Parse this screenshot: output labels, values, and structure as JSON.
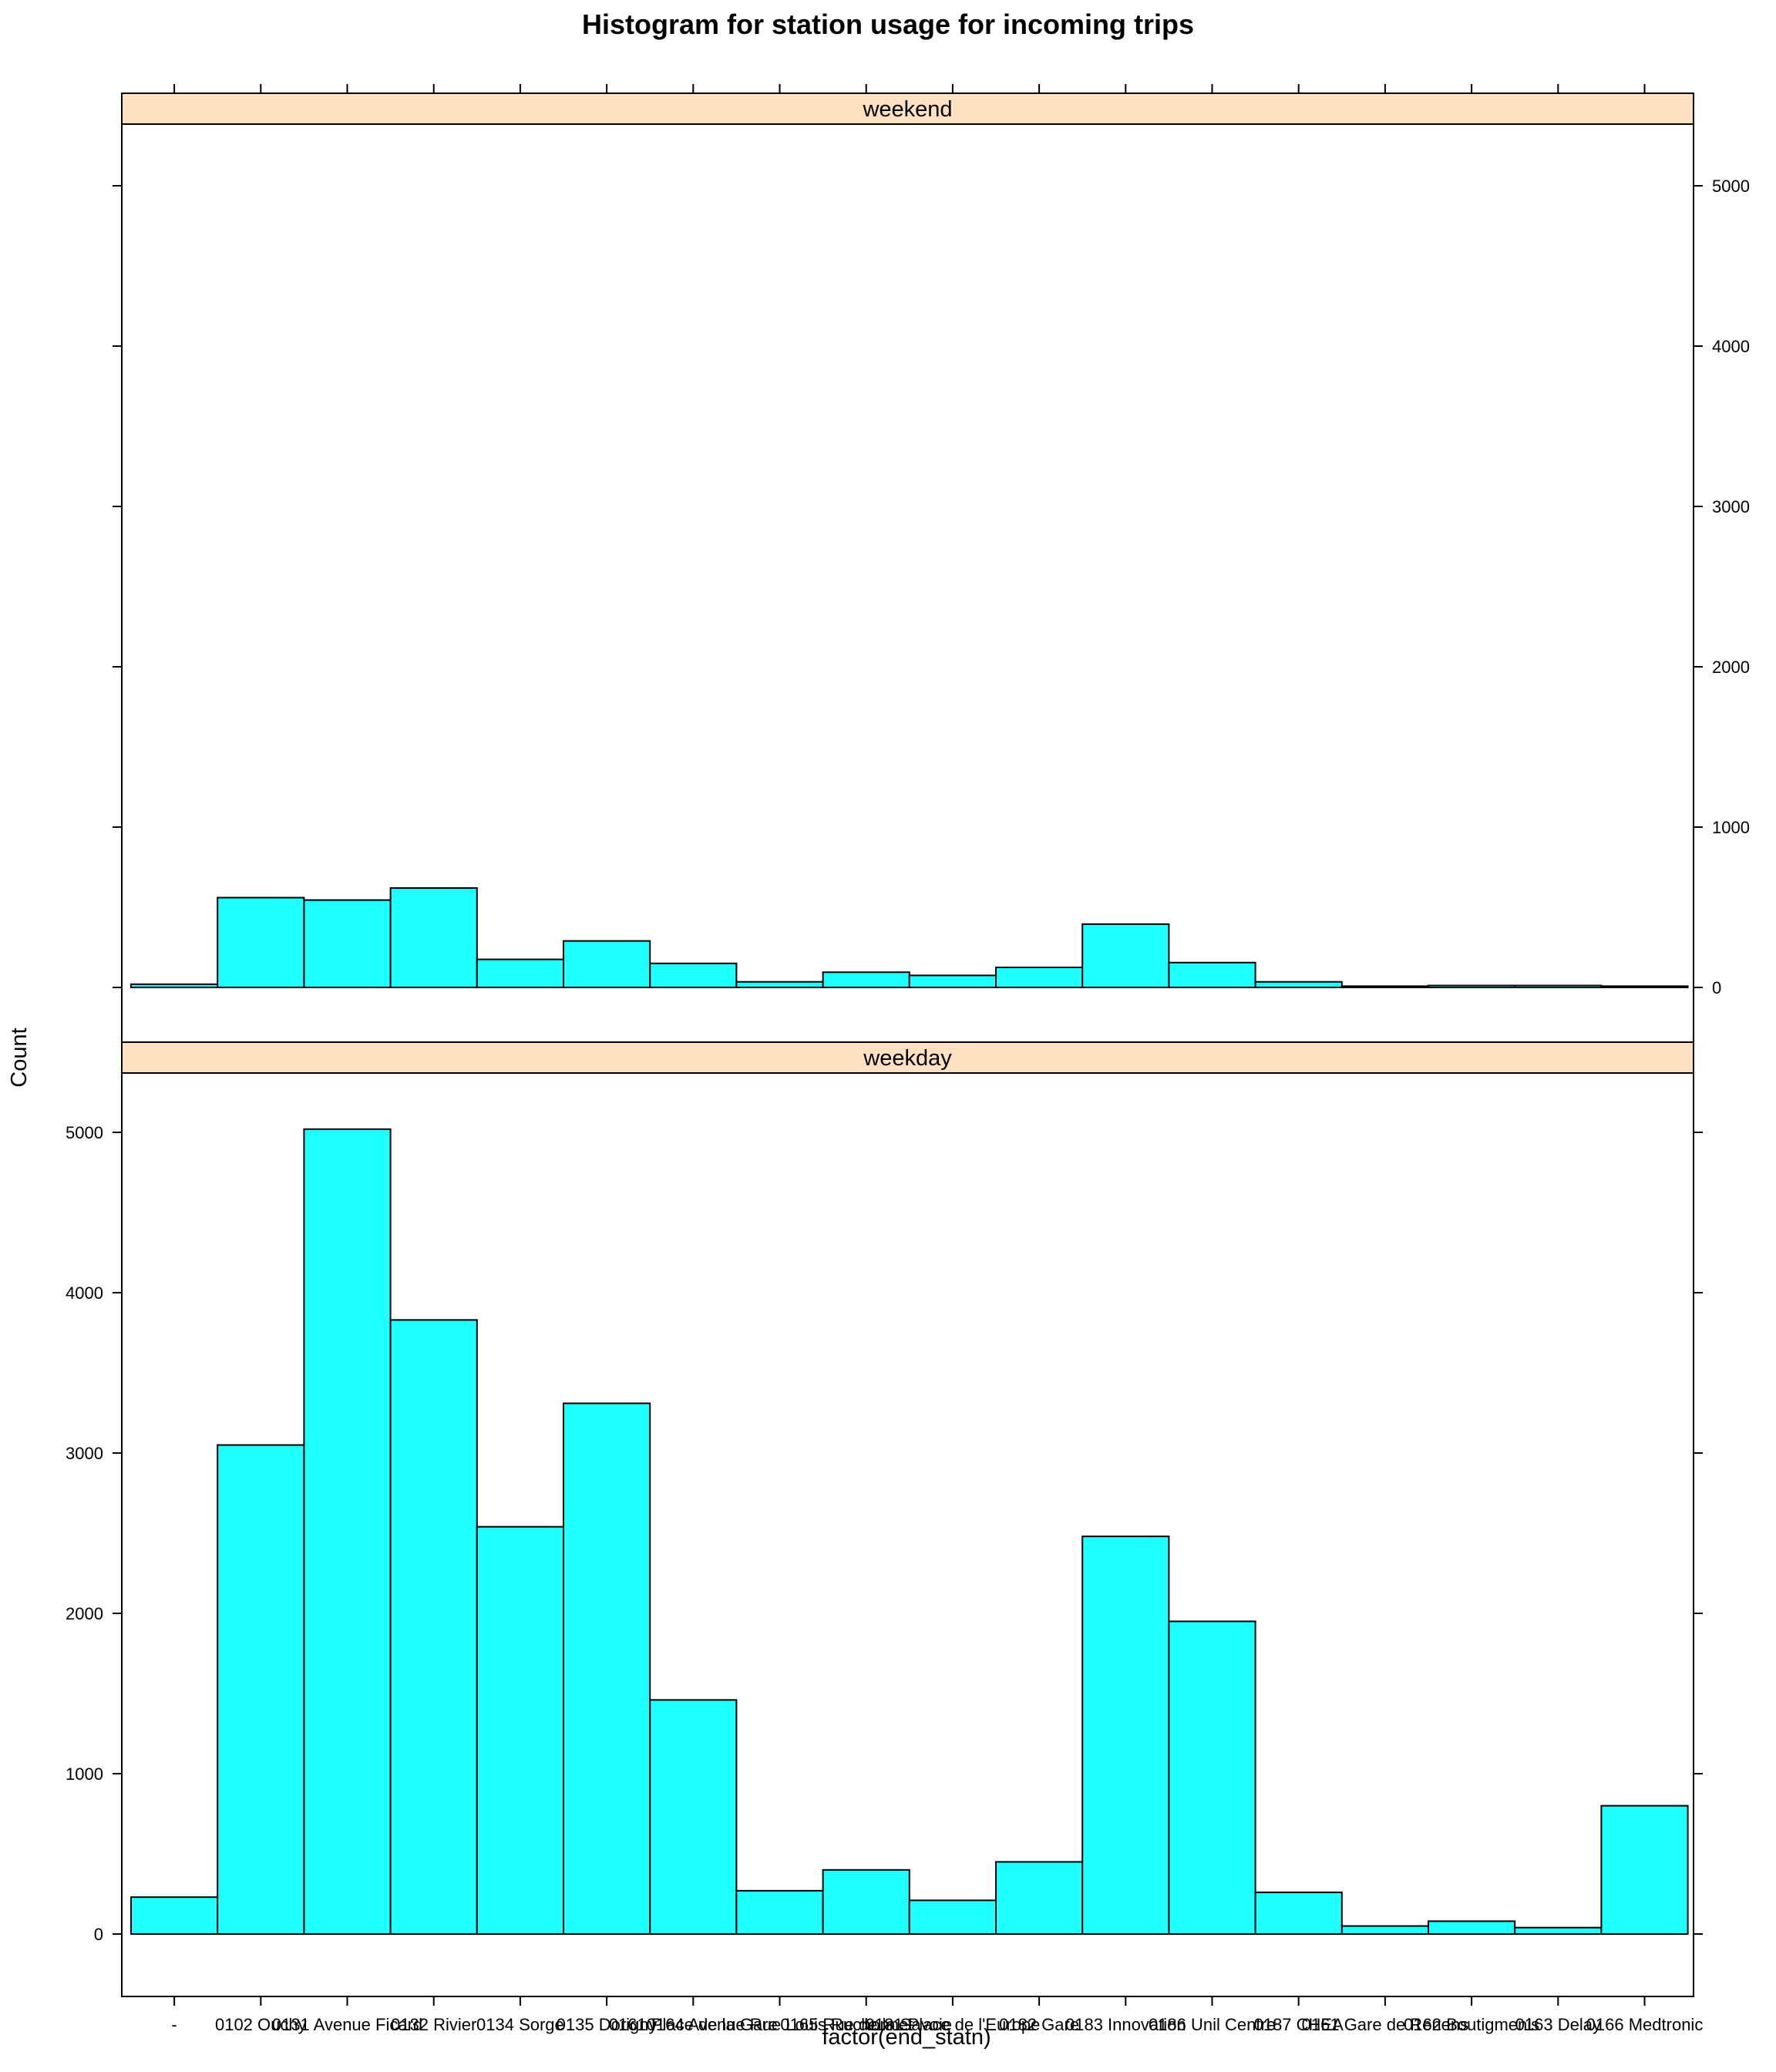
{
  "chart_data": {
    "type": "bar",
    "title": "Histogram for station usage for incoming trips",
    "xlabel": "factor(end_statn)",
    "ylabel": "Count",
    "ylim": [
      0,
      5000
    ],
    "y_ticks": [
      0,
      1000,
      2000,
      3000,
      4000,
      5000
    ],
    "grid": false,
    "legend": "none",
    "bar_color": "#1FFFFF",
    "strip_color": "#FFE0C0",
    "x_tick_labels": [
      "-",
      "0102 Ouchy",
      "0131 Avenue Ficard",
      "0132 Rivier",
      "0134 Sorge",
      "0135 Dorigny",
      "0161 Place de la Gare",
      "0164 Avenue Rue Louis Ruchonnet",
      "0165 Rue de la Savoie",
      "0181 Place de l'Europe",
      "0182 Gare",
      "0183 Innovation",
      "0186 Unil Centre",
      "0187 CHEA",
      "0161 Gare de Renens",
      "0162 Boutigmenis",
      "0163 Delay",
      "0166 Medtronic"
    ],
    "panels": [
      {
        "name": "weekend",
        "values": [
          20,
          560,
          545,
          620,
          175,
          290,
          150,
          35,
          95,
          75,
          125,
          395,
          155,
          35,
          8,
          12,
          12,
          8
        ]
      },
      {
        "name": "weekday",
        "values": [
          230,
          3050,
          5020,
          3830,
          2540,
          3310,
          1460,
          270,
          400,
          210,
          450,
          2480,
          1950,
          260,
          50,
          80,
          40,
          800
        ]
      }
    ]
  }
}
